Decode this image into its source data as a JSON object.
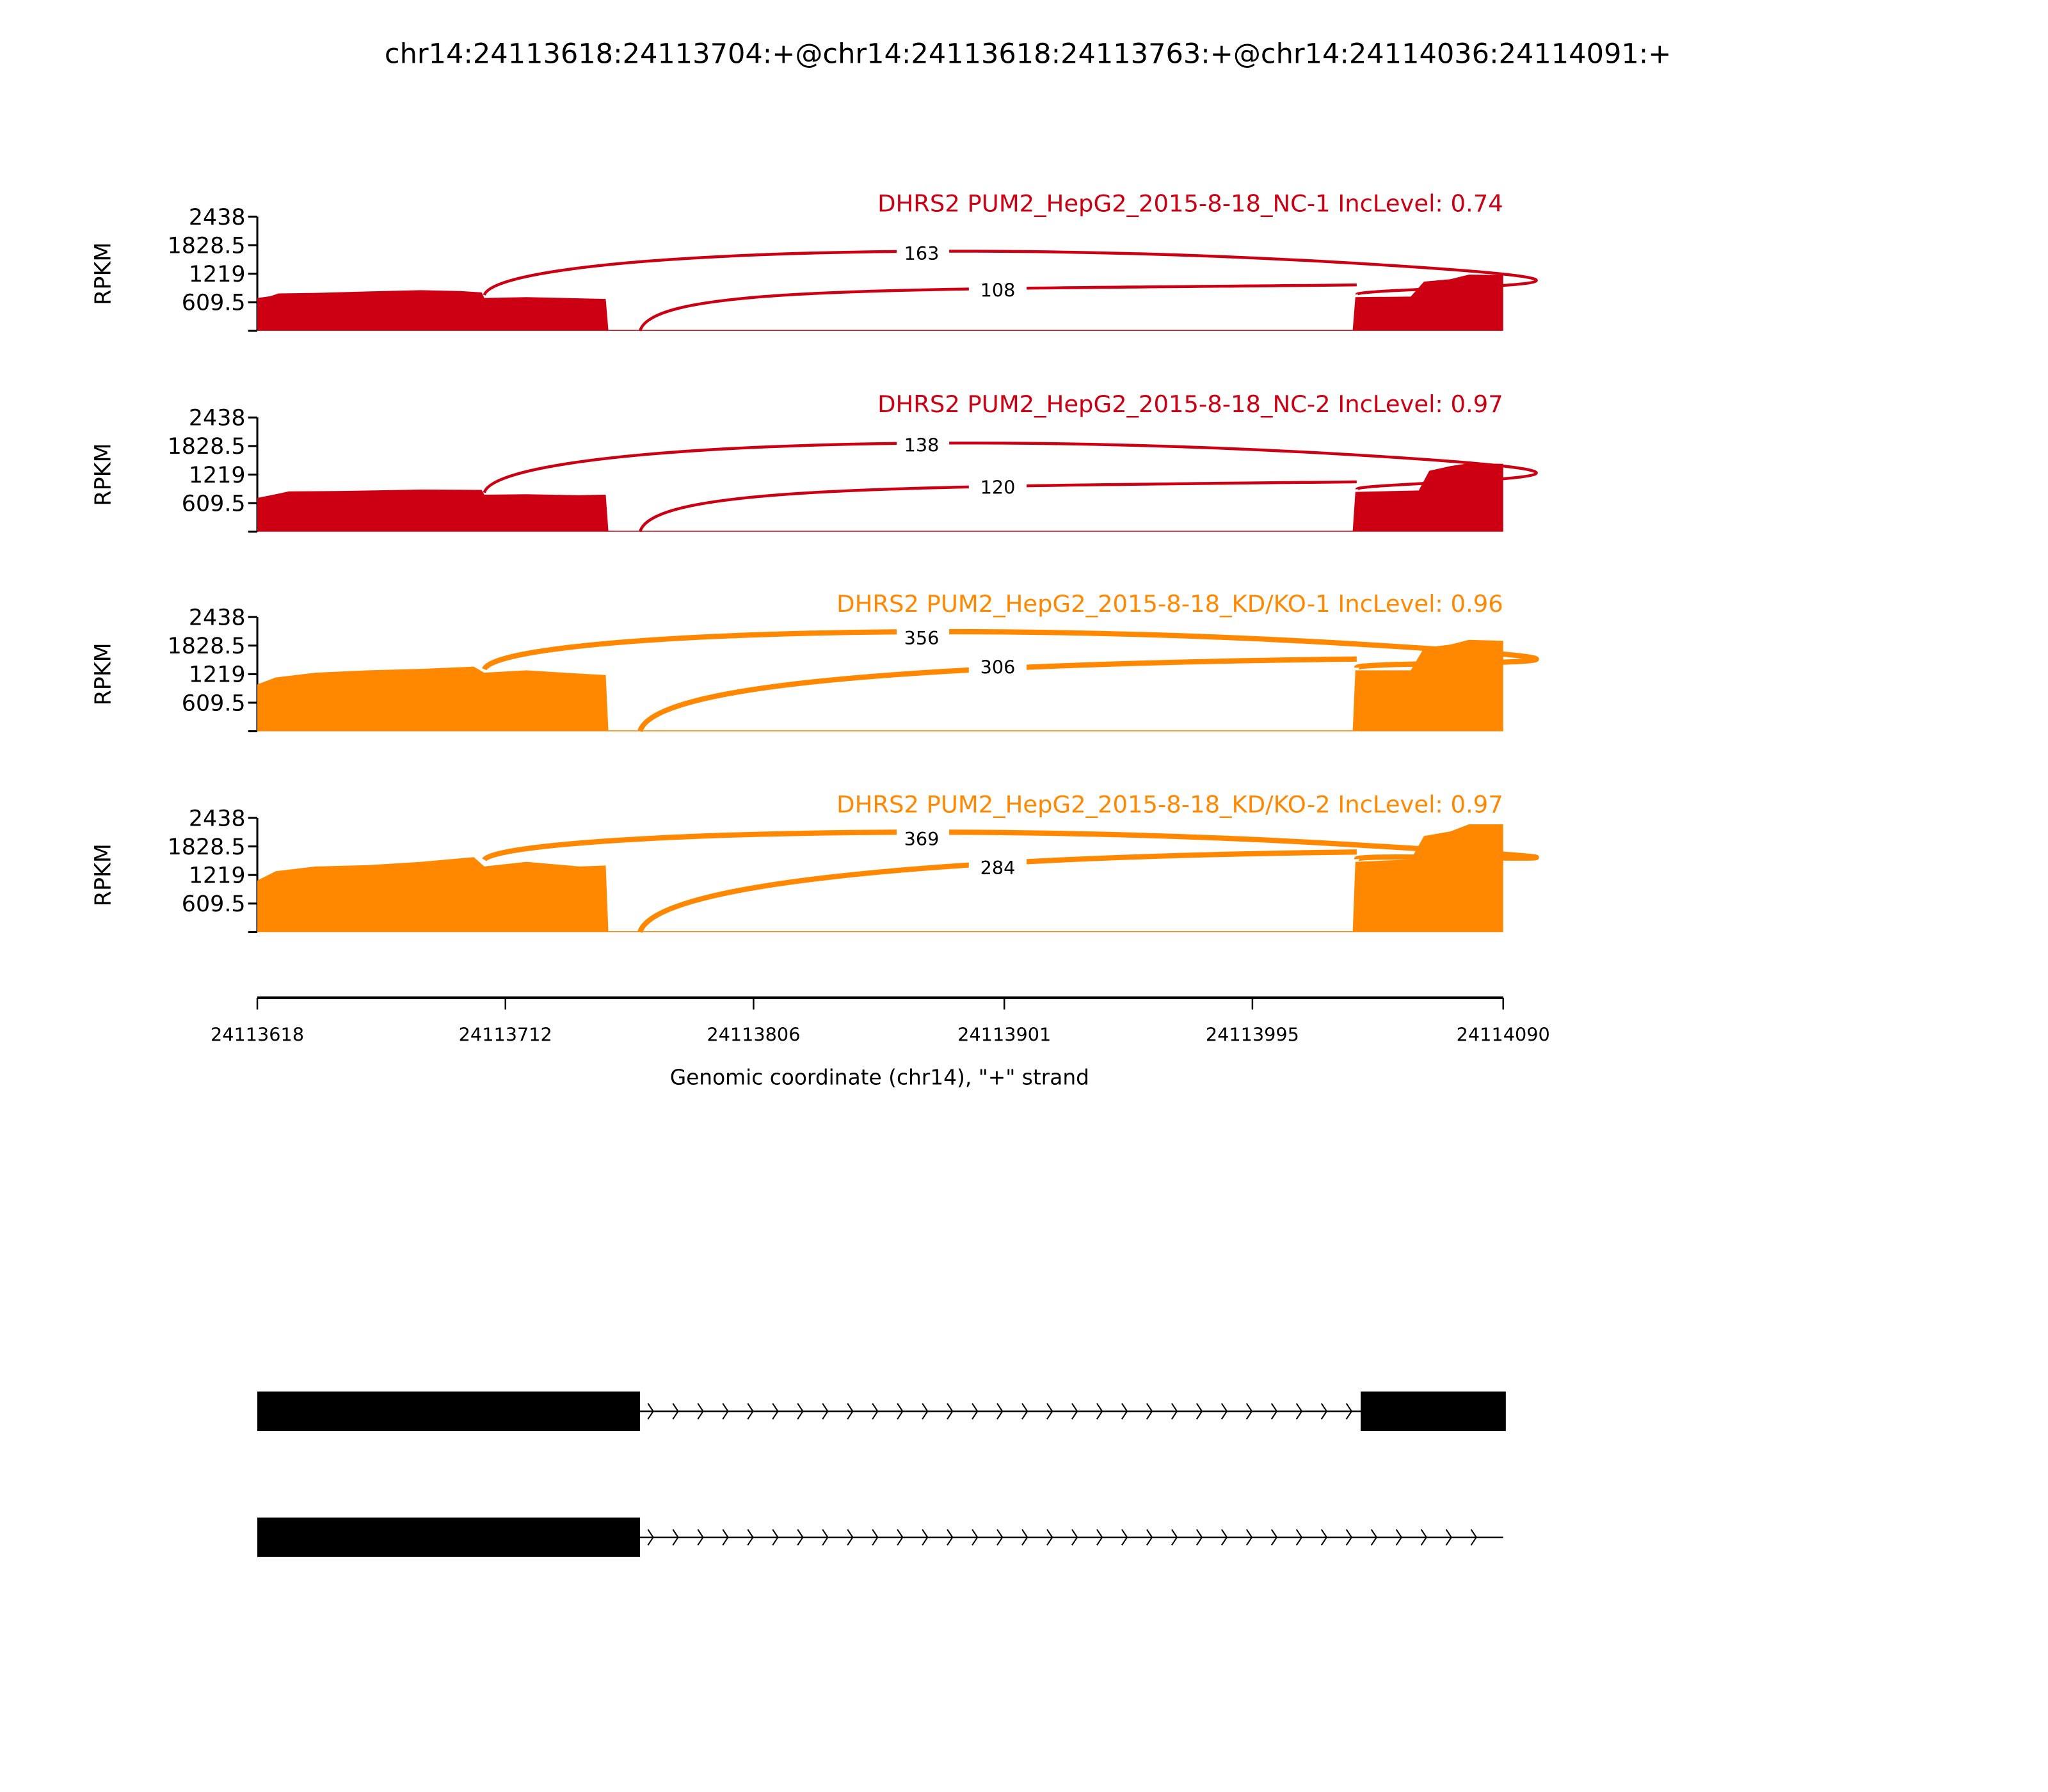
{
  "chart_data": {
    "type": "area",
    "title": "chr14:24113618:24113704:+@chr14:24113618:24113763:+@chr14:24114036:24114091:+",
    "xlabel": "Genomic coordinate (chr14), \"+\" strand",
    "ylabel": "RPKM",
    "xlim": [
      24113618,
      24114090
    ],
    "ylim": [
      0,
      2438
    ],
    "x_ticks": [
      "24113618",
      "24113712",
      "24113806",
      "24113901",
      "24113995",
      "24114090"
    ],
    "y_ticks": [
      "2438",
      "1828.5",
      "1219",
      "609.5"
    ],
    "colors": {
      "NC": "#cc0012",
      "KD": "#ff8800",
      "gene": "#000000"
    },
    "samples": [
      {
        "name": "DHRS2 PUM2_HepG2_2015-8-18_NC-1 IncLevel: 0.74",
        "group": "NC",
        "coverage": [
          [
            24113618,
            700
          ],
          [
            24113623,
            740
          ],
          [
            24113626,
            800
          ],
          [
            24113640,
            810
          ],
          [
            24113660,
            840
          ],
          [
            24113680,
            870
          ],
          [
            24113695,
            850
          ],
          [
            24113703,
            820
          ],
          [
            24113704,
            700
          ],
          [
            24113720,
            720
          ],
          [
            24113735,
            700
          ],
          [
            24113750,
            680
          ],
          [
            24113751,
            20
          ],
          [
            24114033,
            20
          ],
          [
            24114034,
            720
          ],
          [
            24114055,
            730
          ],
          [
            24114060,
            1050
          ],
          [
            24114070,
            1100
          ],
          [
            24114077,
            1200
          ],
          [
            24114090,
            1190
          ]
        ],
        "junctions": [
          {
            "from": 24113704,
            "to": 24114036,
            "count": "163"
          },
          {
            "from": 24113763,
            "to": 24114036,
            "count": "108"
          }
        ]
      },
      {
        "name": "DHRS2 PUM2_HepG2_2015-8-18_NC-2 IncLevel: 0.97",
        "group": "NC",
        "coverage": [
          [
            24113618,
            720
          ],
          [
            24113625,
            800
          ],
          [
            24113630,
            860
          ],
          [
            24113650,
            870
          ],
          [
            24113680,
            900
          ],
          [
            24113703,
            890
          ],
          [
            24113704,
            790
          ],
          [
            24113720,
            800
          ],
          [
            24113740,
            780
          ],
          [
            24113750,
            790
          ],
          [
            24113751,
            20
          ],
          [
            24114033,
            20
          ],
          [
            24114034,
            850
          ],
          [
            24114058,
            880
          ],
          [
            24114062,
            1300
          ],
          [
            24114070,
            1400
          ],
          [
            24114077,
            1460
          ],
          [
            24114090,
            1450
          ]
        ],
        "junctions": [
          {
            "from": 24113704,
            "to": 24114036,
            "count": "138"
          },
          {
            "from": 24113763,
            "to": 24114036,
            "count": "120"
          }
        ]
      },
      {
        "name": "DHRS2 PUM2_HepG2_2015-8-18_KD/KO-1 IncLevel: 0.96",
        "group": "KD",
        "coverage": [
          [
            24113618,
            1000
          ],
          [
            24113625,
            1150
          ],
          [
            24113640,
            1250
          ],
          [
            24113660,
            1300
          ],
          [
            24113680,
            1330
          ],
          [
            24113700,
            1380
          ],
          [
            24113704,
            1250
          ],
          [
            24113720,
            1300
          ],
          [
            24113740,
            1230
          ],
          [
            24113750,
            1200
          ],
          [
            24113751,
            20
          ],
          [
            24114033,
            20
          ],
          [
            24114034,
            1300
          ],
          [
            24114055,
            1300
          ],
          [
            24114060,
            1780
          ],
          [
            24114070,
            1850
          ],
          [
            24114077,
            1950
          ],
          [
            24114090,
            1930
          ]
        ],
        "junctions": [
          {
            "from": 24113704,
            "to": 24114036,
            "count": "356"
          },
          {
            "from": 24113763,
            "to": 24114036,
            "count": "306"
          }
        ]
      },
      {
        "name": "DHRS2 PUM2_HepG2_2015-8-18_KD/KO-2 IncLevel: 0.97",
        "group": "KD",
        "coverage": [
          [
            24113618,
            1100
          ],
          [
            24113625,
            1300
          ],
          [
            24113640,
            1400
          ],
          [
            24113660,
            1430
          ],
          [
            24113680,
            1500
          ],
          [
            24113700,
            1600
          ],
          [
            24113704,
            1400
          ],
          [
            24113720,
            1500
          ],
          [
            24113740,
            1400
          ],
          [
            24113750,
            1420
          ],
          [
            24113751,
            20
          ],
          [
            24114033,
            20
          ],
          [
            24114034,
            1500
          ],
          [
            24114055,
            1550
          ],
          [
            24114060,
            2050
          ],
          [
            24114070,
            2150
          ],
          [
            24114077,
            2300
          ],
          [
            24114090,
            2300
          ]
        ],
        "junctions": [
          {
            "from": 24113704,
            "to": 24114036,
            "count": "369"
          },
          {
            "from": 24113763,
            "to": 24114036,
            "count": "284"
          }
        ]
      }
    ],
    "transcripts": [
      {
        "exons": [
          [
            24113618,
            24113763
          ],
          [
            24114036,
            24114091
          ]
        ],
        "strand": "+"
      },
      {
        "exons": [
          [
            24113618,
            24113763
          ]
        ],
        "line_end": 24114090,
        "strand": "+"
      }
    ]
  }
}
